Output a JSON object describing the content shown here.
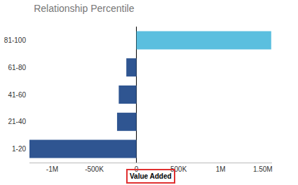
{
  "chart_data": {
    "type": "bar",
    "orientation": "horizontal",
    "title": "Relationship Percentile",
    "xlabel": "Value Added",
    "categories": [
      "1-20",
      "21-40",
      "41-60",
      "61-80",
      "81-100"
    ],
    "values": [
      -1270000,
      -230000,
      -210000,
      -120000,
      1600000
    ],
    "colors": [
      "#2f5591",
      "#2f5591",
      "#2f5591",
      "#2f5591",
      "#5bbfdf"
    ],
    "xlim": [
      -1270000,
      1610000
    ],
    "xticks": [
      {
        "value": -1000000,
        "label": "-1M"
      },
      {
        "value": -500000,
        "label": "-500K"
      },
      0,
      {
        "value": 500000,
        "label": "500K"
      },
      {
        "value": 1000000,
        "label": "1M"
      },
      {
        "value": 1500000,
        "label": "1.50M"
      }
    ],
    "grid": false
  }
}
